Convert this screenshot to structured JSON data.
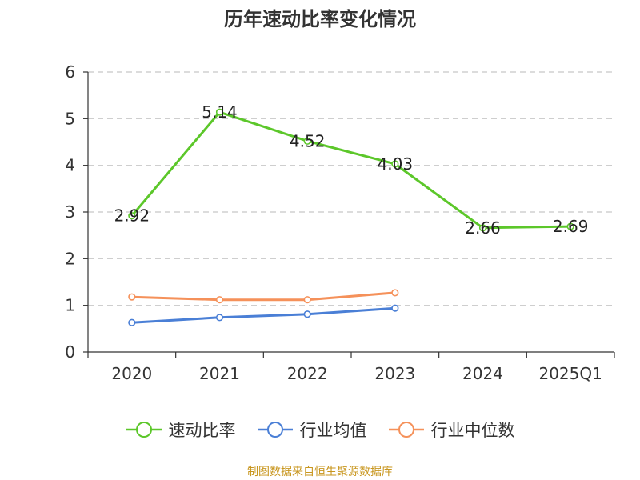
{
  "title": "历年速动比率变化情况",
  "source_note": "制图数据来自恒生聚源数据库",
  "colors": {
    "speed_ratio": "#5cc72a",
    "industry_avg": "#4a7fd6",
    "industry_median": "#f5915a",
    "grid": "#c8c8c8",
    "axis": "#333333"
  },
  "chart_data": {
    "type": "line",
    "title": "历年速动比率变化情况",
    "categories": [
      "2020",
      "2021",
      "2022",
      "2023",
      "2024",
      "2025Q1"
    ],
    "ylim": [
      0,
      6
    ],
    "yticks": [
      0,
      1,
      2,
      3,
      4,
      5,
      6
    ],
    "grid": true,
    "legend_position": "bottom",
    "series": [
      {
        "name": "速动比率",
        "color": "#5cc72a",
        "show_labels": true,
        "values": [
          2.92,
          5.14,
          4.52,
          4.03,
          2.66,
          2.69
        ],
        "labels": [
          "2.92",
          "5.14",
          "4.52",
          "4.03",
          "2.66",
          "2.69"
        ]
      },
      {
        "name": "行业均值",
        "color": "#4a7fd6",
        "show_labels": false,
        "values": [
          0.63,
          0.74,
          0.81,
          0.94,
          null,
          null
        ]
      },
      {
        "name": "行业中位数",
        "color": "#f5915a",
        "show_labels": false,
        "values": [
          1.18,
          1.12,
          1.12,
          1.27,
          null,
          null
        ]
      }
    ]
  }
}
